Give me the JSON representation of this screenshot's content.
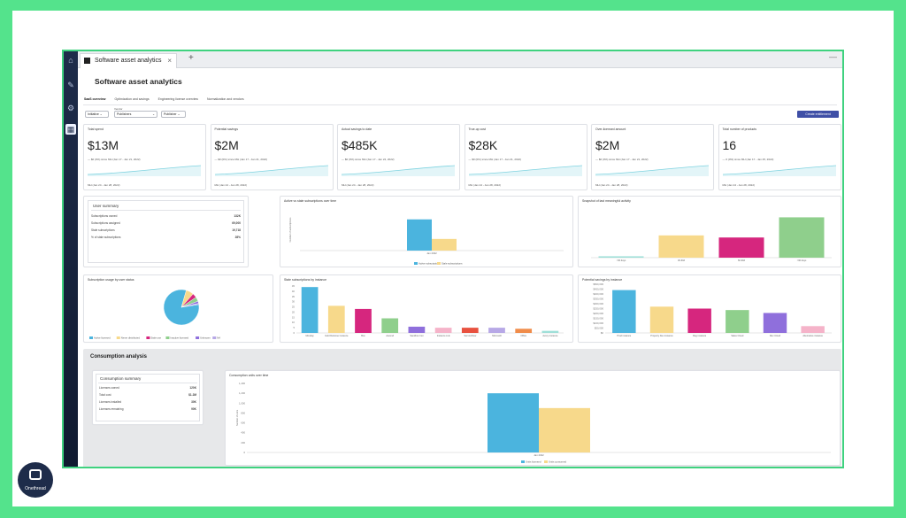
{
  "window": {
    "tab_title": "Software asset analytics",
    "new_tab": "+",
    "minimize": "—",
    "close": "×"
  },
  "page": {
    "title": "Software asset analytics"
  },
  "subtabs": [
    "SaaS overview",
    "Optimization and savings",
    "Engineering license overview",
    "Normalization and vendors"
  ],
  "filters": [
    {
      "label": "",
      "value": "Initiative ⌄"
    },
    {
      "label": "Vendor",
      "value": "Publishers"
    },
    {
      "label": "",
      "value": "Publisher ⌄"
    }
  ],
  "create_button": "Create entitlement",
  "kpis": [
    {
      "title": "Total spend",
      "value": "$13M",
      "change": "— $0 (0%) since MH (Jan 17 - Jan 21, 2022)",
      "date": "MH (Jan 24 - Jan 28, 2022)"
    },
    {
      "title": "Potential savings",
      "value": "$2M",
      "change": "— $0 (0%) since MH (Jan 17 - Jan 21, 2022)",
      "date": "MH (Jan 24 - Jan 28, 2022)"
    },
    {
      "title": "Actual savings to date",
      "value": "$485K",
      "change": "— $0 (0%) since MH (Jan 17 - Jan 24, 2022)",
      "date": "MH (Jan 24 - Jan 28, 2022)"
    },
    {
      "title": "True-up cost",
      "value": "$28K",
      "change": "— $0 (0%) since MH (Jan 17 - Jan 21, 2022)",
      "date": "MH (Jan 24 - Jan 28, 2022)"
    },
    {
      "title": "Over-licensed amount",
      "value": "$2M",
      "change": "— $0 (0%) since MH (Jan 17 - Jan 21, 2022)",
      "date": "MH (Jan 24 - Jan 28, 2022)"
    },
    {
      "title": "Total number of products",
      "value": "16",
      "change": "— 0 (0%) since MH (Jan 17 - Jan 25, 2022)",
      "date": "MH (Jan 24 - Jan 28, 2022)"
    }
  ],
  "user_summary": {
    "title": "User summary",
    "rows": [
      {
        "label": "Subscriptions owned",
        "value": "132K"
      },
      {
        "label": "Subscriptions assigned",
        "value": "69,000"
      },
      {
        "label": "Stale subscriptions",
        "value": "19,718"
      },
      {
        "label": "% of stale subscriptions",
        "value": "28%"
      }
    ]
  },
  "colors": {
    "blue": "#4bb4de",
    "yellow": "#f7d98b",
    "magenta": "#d6267e",
    "green": "#8fcf8c",
    "orange": "#f08c4a",
    "purple": "#8f6fdc",
    "red": "#e8513f",
    "pink": "#f5b3c9",
    "lavender": "#b7a8e6",
    "teal": "#9fdfd8",
    "accent": "#3f4fa6"
  },
  "chart_data": [
    {
      "type": "bar",
      "title": "Active vs stale subscriptions over time",
      "categories": [
        "Jan 2022"
      ],
      "series": [
        {
          "name": "Active subscriptions",
          "values": [
            75
          ]
        },
        {
          "name": "Stale subscriptions",
          "values": [
            28
          ]
        }
      ],
      "ylabel": "Number of subscriptions",
      "ylim": [
        0,
        100
      ]
    },
    {
      "type": "bar",
      "title": "Snapshot of last meaningful activity",
      "categories": [
        "<30 days",
        "30-60d",
        "60-90d",
        ">90 days"
      ],
      "values": [
        2,
        32,
        29,
        58
      ],
      "yticks": [
        "",
        "",
        "",
        "",
        "",
        "",
        "",
        ""
      ],
      "ylim": [
        0,
        70
      ]
    },
    {
      "type": "pie",
      "title": "Subscription usage by user status",
      "slices": [
        {
          "name": "Active licensed",
          "value": 82
        },
        {
          "name": "Never distributed",
          "value": 7
        },
        {
          "name": "Stale use",
          "value": 4
        },
        {
          "name": "Inactive licensed",
          "value": 4
        },
        {
          "name": "Unknown",
          "value": 2
        },
        {
          "name": "NA",
          "value": 1
        }
      ]
    },
    {
      "type": "bar",
      "title": "Stale subscriptions by instance",
      "categories": [
        "Monday",
        "Gold Defense Instance",
        "Box",
        "Ascend",
        "Sandbox Inst",
        "Instance A-E",
        "ServiceNow",
        "Microsoft",
        "Office",
        "Avery Instance"
      ],
      "values": [
        44,
        26,
        23,
        14,
        6,
        5,
        5,
        5,
        4,
        2
      ],
      "yticks": [
        "0",
        "5",
        "10",
        "15",
        "20",
        "25",
        "30",
        "35",
        "40",
        "45"
      ],
      "ylim": [
        0,
        45
      ]
    },
    {
      "type": "bar",
      "title": "Potential savings by instance",
      "categories": [
        "Prod instance",
        "Property Dev instance",
        "Reg instance",
        "Sales Cloud",
        "Rev Cloud",
        "Alternative instance"
      ],
      "values": [
        440000,
        270000,
        250000,
        235000,
        205000,
        70000
      ],
      "yticks": [
        "$0",
        "$50,000",
        "$100,000",
        "$150,000",
        "$200,000",
        "$250,000",
        "$300,000",
        "$350,000",
        "$400,000",
        "$450,000",
        "$500,000"
      ],
      "ylim": [
        0,
        500000
      ]
    },
    {
      "type": "bar",
      "title": "Consumption units over time",
      "categories": [
        "Jan 2022"
      ],
      "series": [
        {
          "name": "Units licensed",
          "values": [
            1200
          ]
        },
        {
          "name": "Units consumed",
          "values": [
            900
          ]
        }
      ],
      "yticks": [
        "0",
        "200",
        "400",
        "600",
        "800",
        "1,000",
        "1,200",
        "1,400"
      ],
      "ylim": [
        0,
        1400
      ],
      "ylabel": "Number of units"
    }
  ],
  "consumption": {
    "section_title": "Consumption analysis",
    "summary_title": "Consumption summary",
    "rows": [
      {
        "label": "Licenses owned",
        "value": "120K"
      },
      {
        "label": "Total cost",
        "value": "$1.2M"
      },
      {
        "label": "Licenses installed",
        "value": "30K"
      },
      {
        "label": "Licenses remaining",
        "value": "90K"
      }
    ]
  },
  "watermark": {
    "brand": "Onethread"
  }
}
